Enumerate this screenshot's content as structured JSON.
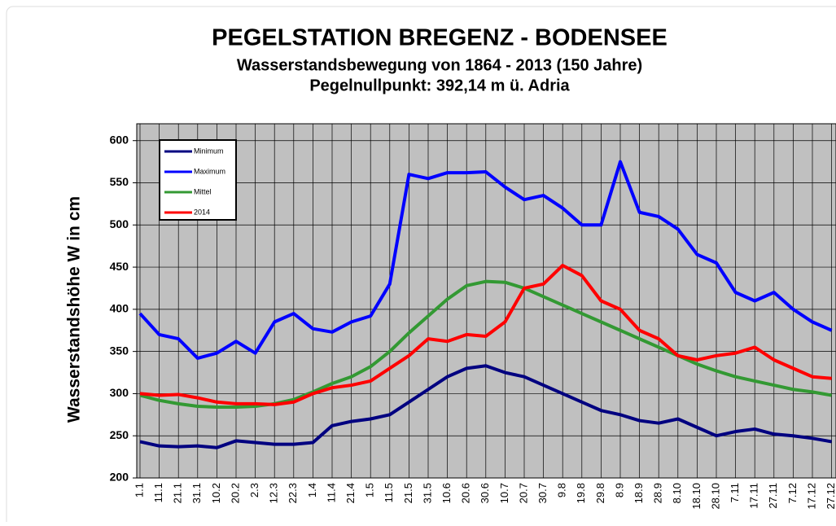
{
  "chart_data": {
    "type": "line",
    "title": "PEGELSTATION BREGENZ - BODENSEE",
    "subtitle": "Wasserstandsbewegung von 1864 - 2013 (150 Jahre)",
    "subtitle2": "Pegelnullpunkt: 392,14 m ü. Adria",
    "y_label": "Wasserstandshöhe W in cm",
    "categories": [
      "1.1",
      "11.1",
      "21.1",
      "31.1",
      "10.2",
      "20.2",
      "2.3",
      "12.3",
      "22.3",
      "1.4",
      "11.4",
      "21.4",
      "1.5",
      "11.5",
      "21.5",
      "31.5",
      "10.6",
      "20.6",
      "30.6",
      "10.7",
      "20.7",
      "30.7",
      "9.8",
      "19.8",
      "29.8",
      "8.9",
      "18.9",
      "28.9",
      "8.10",
      "18.10",
      "28.10",
      "7.11",
      "17.11",
      "27.11",
      "7.12",
      "17.12",
      "27.12"
    ],
    "series": [
      {
        "name": "Minimum",
        "color": "#000080",
        "values": [
          243,
          238,
          237,
          238,
          236,
          244,
          242,
          240,
          240,
          242,
          262,
          267,
          270,
          275,
          290,
          305,
          320,
          330,
          333,
          325,
          320,
          310,
          300,
          290,
          280,
          275,
          268,
          265,
          270,
          260,
          250,
          255,
          258,
          252,
          250,
          247,
          243
        ]
      },
      {
        "name": "Maximum",
        "color": "#0000ff",
        "values": [
          395,
          370,
          365,
          342,
          348,
          362,
          348,
          385,
          395,
          377,
          373,
          385,
          392,
          430,
          560,
          555,
          562,
          562,
          563,
          545,
          530,
          535,
          520,
          500,
          500,
          575,
          515,
          510,
          495,
          465,
          455,
          420,
          410,
          420,
          400,
          385,
          375
        ]
      },
      {
        "name": "Mittel",
        "color": "#339933",
        "values": [
          298,
          292,
          288,
          285,
          284,
          284,
          285,
          288,
          293,
          302,
          312,
          320,
          332,
          350,
          372,
          392,
          412,
          428,
          433,
          432,
          425,
          415,
          405,
          395,
          385,
          375,
          365,
          355,
          345,
          335,
          327,
          320,
          315,
          310,
          305,
          302,
          298
        ]
      },
      {
        "name": "2014",
        "color": "#ff0000",
        "values": [
          300,
          298,
          299,
          295,
          290,
          288,
          288,
          287,
          290,
          300,
          307,
          310,
          315,
          330,
          345,
          365,
          362,
          370,
          368,
          385,
          425,
          430,
          452,
          440,
          410,
          400,
          375,
          365,
          345,
          340,
          345,
          348,
          355,
          340,
          330,
          320,
          318
        ]
      }
    ],
    "ylim": [
      200,
      620
    ],
    "yticks": [
      200,
      250,
      300,
      350,
      400,
      450,
      500,
      550,
      600
    ],
    "grid": true,
    "legend": "top-left"
  }
}
